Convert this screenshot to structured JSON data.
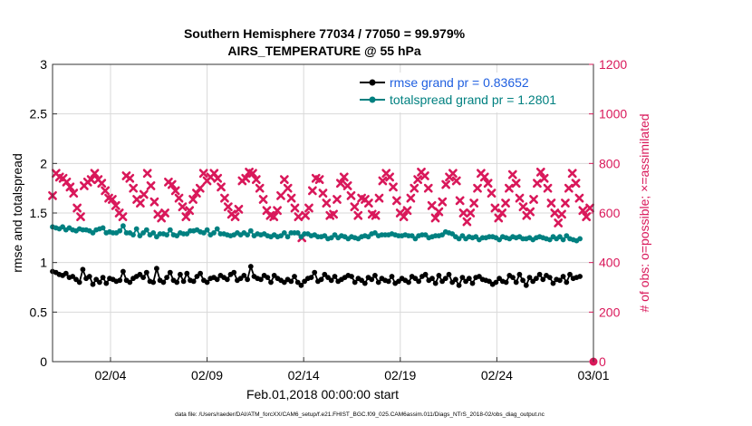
{
  "chart_data": {
    "type": "line",
    "title_line1": "Southern Hemisphere 77034 / 77050 = 99.979%",
    "title_line2": "AIRS_TEMPERATURE @ 55 hPa",
    "xlabel": "Feb.01,2018 00:00:00 start",
    "ylabel_left": "rmse and totalspread",
    "ylabel_right": "# of obs: o=possible; ×=assimilated",
    "x_tick_labels": [
      "02/04",
      "02/09",
      "02/14",
      "02/19",
      "02/24",
      "03/01"
    ],
    "x_tick_days": [
      3,
      8,
      13,
      18,
      23,
      28
    ],
    "xlim_days": [
      0,
      28
    ],
    "left_ylim": [
      0,
      3
    ],
    "left_yticks": [
      "0",
      "0.5",
      "1",
      "1.5",
      "2",
      "2.5",
      "3"
    ],
    "right_ylim": [
      0,
      1200
    ],
    "right_yticks": [
      "0",
      "200",
      "400",
      "600",
      "800",
      "1000",
      "1200"
    ],
    "colors": {
      "rmse": "#000000",
      "spread": "#008080",
      "obs": "#d9185a",
      "right_axis": "#d9185a"
    },
    "series": [
      {
        "name": "rmse",
        "legend": "rmse grand pr = 0.83652",
        "axis": "left",
        "values": [
          0.91,
          0.9,
          0.88,
          0.87,
          0.89,
          0.85,
          0.86,
          0.83,
          0.8,
          0.93,
          0.84,
          0.86,
          0.78,
          0.83,
          0.8,
          0.85,
          0.79,
          0.84,
          0.83,
          0.81,
          0.82,
          0.91,
          0.82,
          0.8,
          0.84,
          0.86,
          0.88,
          0.85,
          0.9,
          0.81,
          0.8,
          0.94,
          0.82,
          0.8,
          0.85,
          0.9,
          0.82,
          0.8,
          0.88,
          0.81,
          0.89,
          0.82,
          0.81,
          0.86,
          0.89,
          0.82,
          0.8,
          0.84,
          0.85,
          0.83,
          0.87,
          0.85,
          0.83,
          0.88,
          0.9,
          0.82,
          0.84,
          0.87,
          0.83,
          0.96,
          0.86,
          0.84,
          0.83,
          0.87,
          0.85,
          0.8,
          0.87,
          0.84,
          0.82,
          0.8,
          0.83,
          0.81,
          0.86,
          0.8,
          0.77,
          0.81,
          0.84,
          0.85,
          0.9,
          0.81,
          0.83,
          0.88,
          0.85,
          0.82,
          0.86,
          0.81,
          0.83,
          0.85,
          0.87,
          0.86,
          0.8,
          0.84,
          0.82,
          0.79,
          0.85,
          0.83,
          0.87,
          0.8,
          0.84,
          0.82,
          0.81,
          0.86,
          0.79,
          0.81,
          0.84,
          0.82,
          0.8,
          0.86,
          0.84,
          0.81,
          0.86,
          0.88,
          0.82,
          0.84,
          0.79,
          0.87,
          0.81,
          0.84,
          0.88,
          0.8,
          0.83,
          0.77,
          0.85,
          0.81,
          0.84,
          0.79,
          0.85,
          0.86,
          0.83,
          0.82,
          0.81,
          0.78,
          0.8,
          0.84,
          0.81,
          0.8,
          0.87,
          0.85,
          0.8,
          0.88,
          0.82,
          0.77,
          0.85,
          0.81,
          0.84,
          0.88,
          0.83,
          0.87,
          0.85,
          0.79,
          0.83,
          0.82,
          0.86,
          0.8,
          0.88,
          0.84,
          0.85,
          0.86
        ],
        "x_start_day": 0,
        "x_step_day": 0.1739
      },
      {
        "name": "totalspread",
        "legend": "totalspread grand pr = 1.2801",
        "axis": "left",
        "values": [
          1.36,
          1.35,
          1.34,
          1.36,
          1.33,
          1.35,
          1.33,
          1.32,
          1.34,
          1.33,
          1.33,
          1.32,
          1.3,
          1.33,
          1.34,
          1.35,
          1.3,
          1.31,
          1.3,
          1.3,
          1.32,
          1.37,
          1.3,
          1.3,
          1.28,
          1.34,
          1.27,
          1.3,
          1.33,
          1.28,
          1.3,
          1.26,
          1.29,
          1.29,
          1.28,
          1.33,
          1.28,
          1.27,
          1.3,
          1.29,
          1.29,
          1.32,
          1.32,
          1.33,
          1.31,
          1.3,
          1.33,
          1.28,
          1.3,
          1.34,
          1.29,
          1.29,
          1.28,
          1.27,
          1.28,
          1.3,
          1.28,
          1.3,
          1.28,
          1.32,
          1.27,
          1.29,
          1.28,
          1.29,
          1.27,
          1.26,
          1.28,
          1.26,
          1.27,
          1.3,
          1.26,
          1.3,
          1.3,
          1.3,
          1.26,
          1.29,
          1.29,
          1.27,
          1.28,
          1.26,
          1.26,
          1.27,
          1.24,
          1.25,
          1.28,
          1.25,
          1.27,
          1.26,
          1.24,
          1.26,
          1.25,
          1.24,
          1.26,
          1.27,
          1.26,
          1.29,
          1.3,
          1.27,
          1.28,
          1.28,
          1.28,
          1.29,
          1.28,
          1.27,
          1.27,
          1.28,
          1.27,
          1.27,
          1.24,
          1.27,
          1.28,
          1.28,
          1.25,
          1.26,
          1.27,
          1.27,
          1.28,
          1.31,
          1.3,
          1.29,
          1.26,
          1.24,
          1.27,
          1.24,
          1.26,
          1.25,
          1.26,
          1.23,
          1.25,
          1.25,
          1.26,
          1.26,
          1.25,
          1.23,
          1.26,
          1.25,
          1.24,
          1.26,
          1.25,
          1.26,
          1.24,
          1.24,
          1.25,
          1.23,
          1.25,
          1.26,
          1.25,
          1.24,
          1.23,
          1.26,
          1.24,
          1.26,
          1.23,
          1.27,
          1.24,
          1.23,
          1.22,
          1.24
        ],
        "x_start_day": 0,
        "x_step_day": 0.1739
      },
      {
        "name": "obs_assimilated",
        "axis": "right",
        "marker": "x",
        "values": [
          670,
          760,
          745,
          740,
          725,
          705,
          680,
          620,
          585,
          710,
          725,
          735,
          760,
          735,
          720,
          690,
          660,
          655,
          630,
          600,
          585,
          750,
          740,
          700,
          655,
          640,
          675,
          760,
          710,
          645,
          595,
          580,
          600,
          725,
          715,
          690,
          660,
          625,
          585,
          610,
          655,
          680,
          700,
          760,
          730,
          745,
          760,
          740,
          705,
          660,
          625,
          595,
          585,
          615,
          730,
          740,
          765,
          760,
          735,
          700,
          655,
          610,
          590,
          585,
          610,
          670,
          735,
          700,
          660,
          620,
          585,
          500,
          590,
          620,
          690,
          740,
          735,
          680,
          640,
          590,
          595,
          655,
          720,
          745,
          710,
          670,
          625,
          590,
          660,
          655,
          640,
          595,
          590,
          660,
          730,
          760,
          745,
          705,
          650,
          600,
          585,
          610,
          660,
          700,
          735,
          765,
          750,
          700,
          630,
          580,
          605,
          645,
          715,
          745,
          760,
          730,
          650,
          600,
          565,
          600,
          640,
          700,
          760,
          745,
          720,
          680,
          620,
          580,
          600,
          640,
          700,
          755,
          720,
          660,
          625,
          590,
          605,
          655,
          720,
          765,
          740,
          700,
          640,
          600,
          560,
          595,
          640,
          700,
          760,
          720,
          660,
          610,
          585,
          620
        ],
        "x_start_day": 0,
        "x_step_day": 0.1818,
        "extra_point": {
          "day": 28,
          "value": 0
        }
      }
    ]
  },
  "footer": "data file: /Users/raeder/DAI/ATM_forcXX/CAM6_setup/f.e21.FHIST_BGC.f09_025.CAM6assim.011/Diags_NTrS_2018-02/obs_diag_output.nc"
}
